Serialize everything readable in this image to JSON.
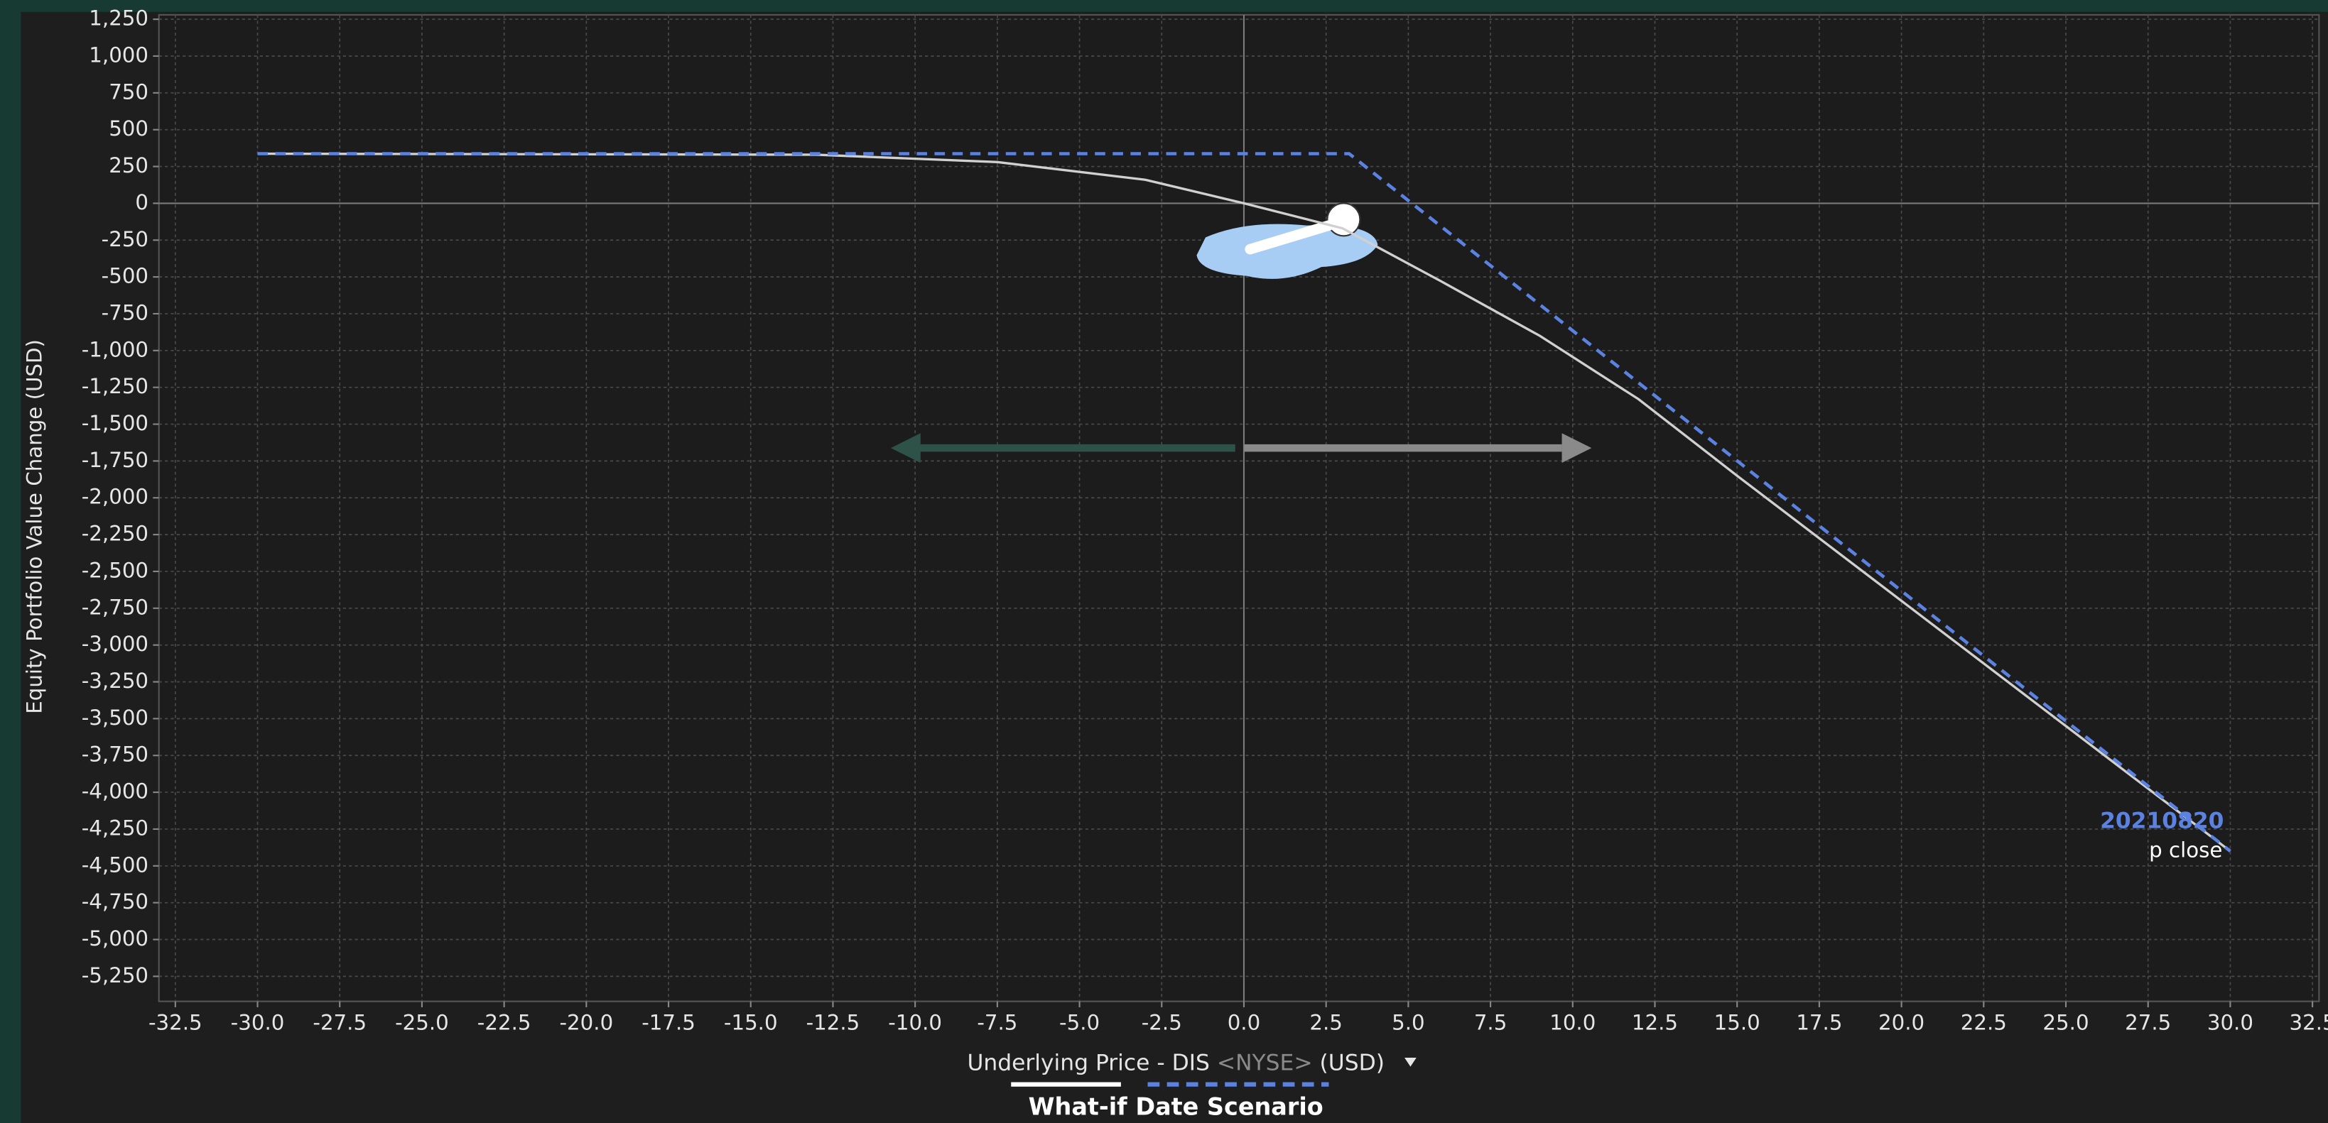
{
  "chart_data": {
    "type": "line",
    "ylabel": "Equity Portfolio Value Change (USD)",
    "xlabel": {
      "prefix": "Underlying Price - DIS",
      "exchange": "<NYSE>",
      "currency": "(USD)"
    },
    "legend_title": "What-if Date Scenario",
    "grid": true,
    "xlim": [
      -33,
      32.7
    ],
    "ylim": [
      -5420,
      1280
    ],
    "xticks": [
      -32.5,
      {
        "value": -30,
        "label": "-30.0"
      },
      -27.5,
      {
        "value": -25,
        "label": "-25.0"
      },
      -22.5,
      {
        "value": -20,
        "label": "-20.0"
      },
      -17.5,
      {
        "value": -15,
        "label": "-15.0"
      },
      -12.5,
      {
        "value": -10,
        "label": "-10.0"
      },
      -7.5,
      {
        "value": -5,
        "label": "-5.0"
      },
      -2.5,
      {
        "value": 0,
        "label": "0.0"
      },
      2.5,
      {
        "value": 5,
        "label": "5.0"
      },
      7.5,
      {
        "value": 10,
        "label": "10.0"
      },
      12.5,
      {
        "value": 15,
        "label": "15.0"
      },
      17.5,
      {
        "value": 20,
        "label": "20.0"
      },
      22.5,
      {
        "value": 25,
        "label": "25.0"
      },
      27.5,
      {
        "value": 30,
        "label": "30.0"
      },
      32.5
    ],
    "yticks": [
      {
        "value": 1250,
        "label": "1,250"
      },
      {
        "value": 1000,
        "label": "1,000"
      },
      750,
      500,
      250,
      0,
      -250,
      -500,
      -750,
      {
        "value": -1000,
        "label": "-1,000"
      },
      {
        "value": -1250,
        "label": "-1,250"
      },
      {
        "value": -1500,
        "label": "-1,500"
      },
      {
        "value": -1750,
        "label": "-1,750"
      },
      {
        "value": -2000,
        "label": "-2,000"
      },
      {
        "value": -2250,
        "label": "-2,250"
      },
      {
        "value": -2500,
        "label": "-2,500"
      },
      {
        "value": -2750,
        "label": "-2,750"
      },
      {
        "value": -3000,
        "label": "-3,000"
      },
      {
        "value": -3250,
        "label": "-3,250"
      },
      {
        "value": -3500,
        "label": "-3,500"
      },
      {
        "value": -3750,
        "label": "-3,750"
      },
      {
        "value": -4000,
        "label": "-4,000"
      },
      {
        "value": -4250,
        "label": "-4,250"
      },
      {
        "value": -4500,
        "label": "-4,500"
      },
      {
        "value": -4750,
        "label": "-4,750"
      },
      {
        "value": -5000,
        "label": "-5,000"
      },
      {
        "value": -5250,
        "label": "-5,250"
      }
    ],
    "series": [
      {
        "name": "p close",
        "color": "#d0d0d0",
        "dash": false,
        "x": [
          -30,
          -13,
          -7.5,
          -3,
          0,
          3,
          6,
          9,
          12,
          15,
          20,
          25,
          30
        ],
        "values": [
          337,
          330,
          280,
          160,
          0,
          -170,
          -530,
          -900,
          -1330,
          -1850,
          -2700,
          -3550,
          -4400
        ]
      },
      {
        "name": "20210820",
        "color": "#5b82e0",
        "dash": true,
        "x": [
          -30,
          3.2,
          30
        ],
        "values": [
          337,
          337,
          -4400
        ]
      }
    ]
  }
}
